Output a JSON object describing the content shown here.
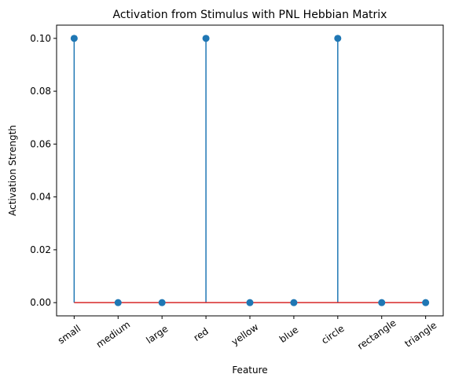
{
  "chart_data": {
    "type": "stem",
    "title": "Activation from Stimulus with PNL Hebbian Matrix",
    "xlabel": "Feature",
    "ylabel": "Activation Strength",
    "categories": [
      "small",
      "medium",
      "large",
      "red",
      "yellow",
      "blue",
      "circle",
      "rectangle",
      "triangle"
    ],
    "values": [
      0.1,
      0.0,
      0.0,
      0.1,
      0.0,
      0.0,
      0.1,
      0.0,
      0.0
    ],
    "ylim": [
      -0.005,
      0.105
    ],
    "yticks": [
      "0.00",
      "0.02",
      "0.04",
      "0.06",
      "0.08",
      "0.10"
    ],
    "grid": false,
    "legend": "none",
    "colors": {
      "stem": "#1f77b4",
      "marker": "#1f77b4",
      "baseline": "#d62728"
    }
  }
}
